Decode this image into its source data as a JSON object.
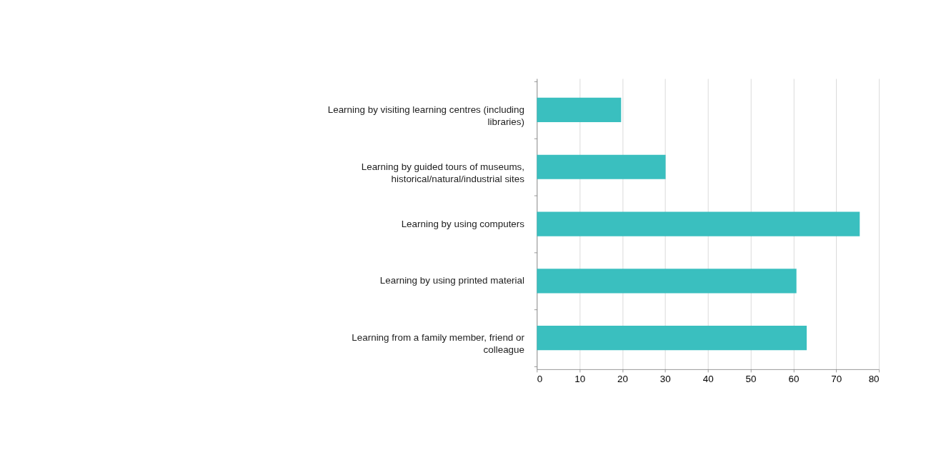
{
  "chart_data": {
    "type": "bar",
    "orientation": "horizontal",
    "categories": [
      "Learning by visiting learning centres (including libraries)",
      "Learning by guided tours of museums, historical/natural/industrial sites",
      "Learning by using computers",
      "Learning by using printed material",
      "Learning from a family member, friend or colleague"
    ],
    "values": [
      19.7,
      30.1,
      75.5,
      60.7,
      63.1
    ],
    "color": "#3abfbf",
    "xlim": [
      0,
      80
    ],
    "xticks": [
      0,
      10,
      20,
      30,
      40,
      50,
      60,
      70,
      80
    ],
    "grid": "x"
  }
}
